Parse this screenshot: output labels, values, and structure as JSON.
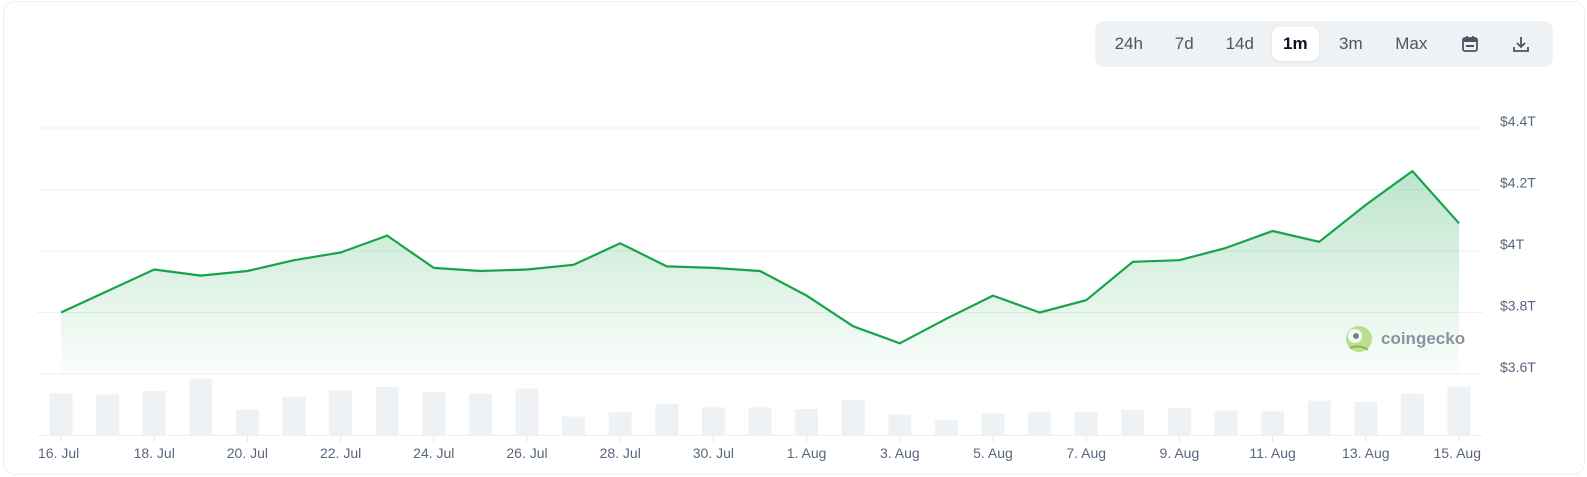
{
  "toolbar": {
    "ranges": [
      "24h",
      "7d",
      "14d",
      "1m",
      "3m",
      "Max"
    ],
    "active_range": "1m",
    "calendar_icon": "calendar-icon",
    "download_icon": "download-icon"
  },
  "watermark": {
    "text": "coingecko",
    "icon": "gecko-logo-icon"
  },
  "colors": {
    "line": "#16a34a",
    "volume": "#eff2f5",
    "grid": "#eef0f3"
  },
  "chart_data": {
    "type": "area",
    "title": "",
    "xlabel": "",
    "ylabel": "",
    "x_tick_labels": [
      "16. Jul",
      "18. Jul",
      "20. Jul",
      "22. Jul",
      "24. Jul",
      "26. Jul",
      "28. Jul",
      "30. Jul",
      "1. Aug",
      "3. Aug",
      "5. Aug",
      "7. Aug",
      "9. Aug",
      "11. Aug",
      "13. Aug",
      "15. Aug"
    ],
    "y_tick_labels": [
      "$4.4T",
      "$4.2T",
      "$4T",
      "$3.8T",
      "$3.6T"
    ],
    "y_ticks": [
      4.4,
      4.2,
      4.0,
      3.8,
      3.6
    ],
    "ylim": [
      3.6,
      4.4
    ],
    "grid": true,
    "series": [
      {
        "values": [
          3.8,
          3.87,
          3.94,
          3.92,
          3.935,
          3.97,
          3.995,
          4.05,
          3.945,
          3.935,
          3.94,
          3.955,
          4.025,
          3.95,
          3.945,
          3.935,
          3.855,
          3.755,
          3.7,
          3.78,
          3.855,
          3.8,
          3.84,
          3.965,
          3.97,
          4.01,
          4.065,
          4.03,
          4.15,
          4.26,
          4.09
        ]
      }
    ],
    "volume_relative": [
      0.72,
      0.7,
      0.76,
      0.97,
      0.44,
      0.66,
      0.77,
      0.83,
      0.74,
      0.72,
      0.8,
      0.32,
      0.39,
      0.54,
      0.48,
      0.48,
      0.45,
      0.61,
      0.35,
      0.26,
      0.37,
      0.39,
      0.4,
      0.43,
      0.46,
      0.42,
      0.41,
      0.59,
      0.57,
      0.71,
      0.84
    ]
  }
}
